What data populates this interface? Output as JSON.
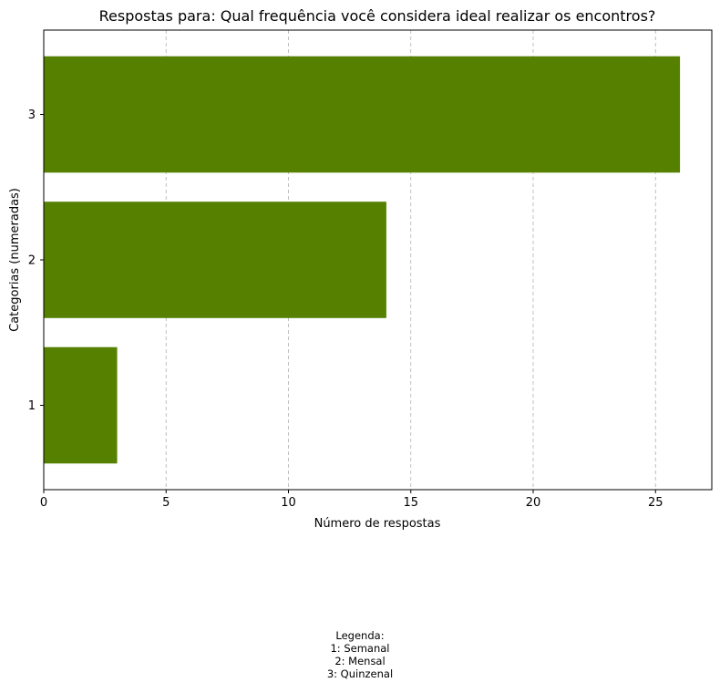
{
  "chart_data": {
    "type": "bar",
    "orientation": "horizontal",
    "title": "Respostas para: Qual frequência você considera ideal realizar os encontros?",
    "xlabel": "Número de respostas",
    "ylabel": "Categorias (numeradas)",
    "categories": [
      "1",
      "2",
      "3"
    ],
    "values": [
      3,
      14,
      26
    ],
    "xlim": [
      0,
      27.3
    ],
    "xticks": [
      0,
      5,
      10,
      15,
      20,
      25
    ],
    "grid": "x-dashed",
    "bar_color": "#558000",
    "legend": {
      "title": "Legenda:",
      "entries": [
        "1: Semanal",
        "2: Mensal",
        "3: Quinzenal"
      ],
      "placement": "bottom-center"
    }
  }
}
